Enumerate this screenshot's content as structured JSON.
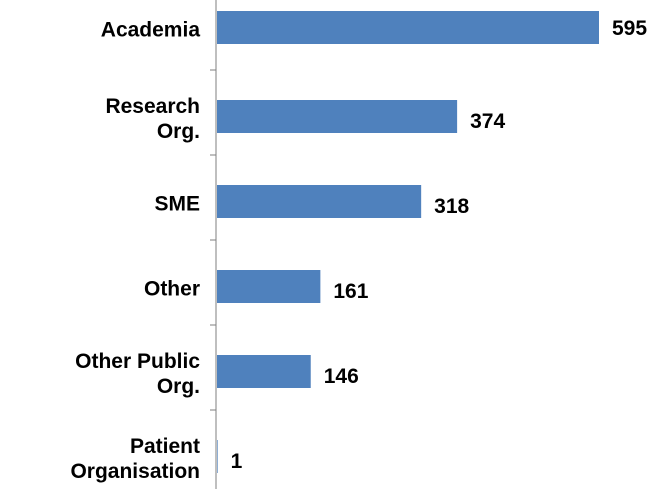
{
  "chart_data": {
    "type": "bar",
    "orientation": "horizontal",
    "categories": [
      "Academia",
      "Research\nOrg.",
      "SME",
      "Other",
      "Other Public\nOrg.",
      "Patient\nOrganisation"
    ],
    "values": [
      595,
      374,
      318,
      161,
      146,
      1
    ],
    "color": "#4f81bd"
  }
}
